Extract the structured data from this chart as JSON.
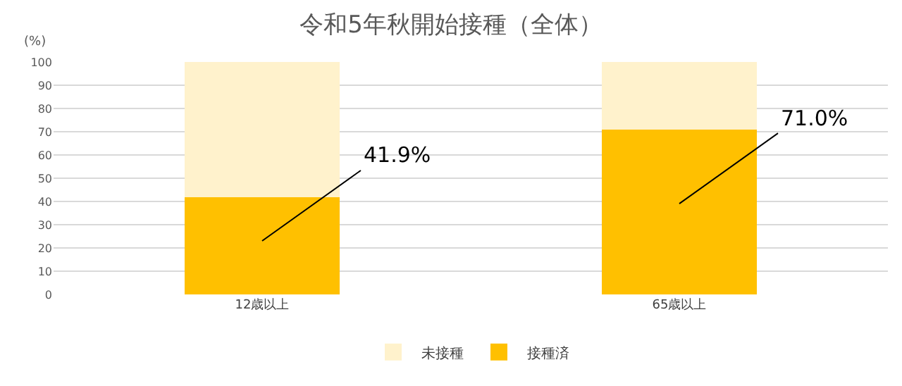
{
  "chart_data": {
    "type": "bar",
    "title": "令和5年秋開始接種（全体）",
    "ylabel": "(%)",
    "categories": [
      "12歳以上",
      "65歳以上"
    ],
    "stacked": true,
    "series": [
      {
        "name": "接種済",
        "color": "#ffc000",
        "values": [
          41.9,
          71.0
        ],
        "value_labels": [
          "41.9%",
          "71.0%"
        ]
      },
      {
        "name": "未接種",
        "color": "#fff2cc",
        "values": [
          58.1,
          29.0
        ]
      }
    ],
    "ylim": [
      0,
      100
    ],
    "yticks": [
      0,
      10,
      20,
      30,
      40,
      50,
      60,
      70,
      80,
      90,
      100
    ],
    "grid": "y",
    "legend": "bottom"
  }
}
